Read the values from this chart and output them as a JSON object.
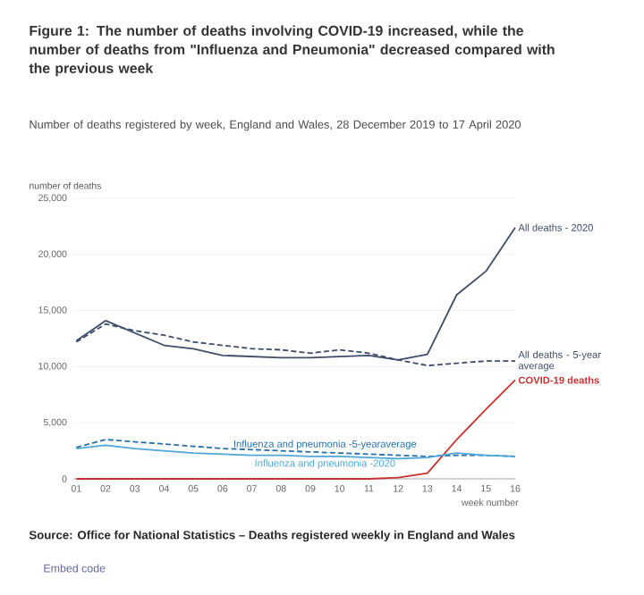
{
  "chart_data": {
    "type": "line",
    "title": "Figure 1: The number of deaths involving COVID-19 increased, while the number of deaths from \"Influenza and Pneumonia\" decreased compared with the previous week",
    "subtitle": "Number of deaths registered by week, England and Wales, 28 December 2019 to 17 April 2020",
    "ylabel": "number of deaths",
    "xlabel": "week number",
    "categories": [
      "01",
      "02",
      "03",
      "04",
      "05",
      "06",
      "07",
      "08",
      "09",
      "10",
      "11",
      "12",
      "13",
      "14",
      "15",
      "16"
    ],
    "ylim": [
      0,
      25000
    ],
    "yticks": [
      0,
      {
        "value": 5000,
        "label": "5,000"
      },
      {
        "value": 10000,
        "label": "10,000"
      },
      {
        "value": 15000,
        "label": "15,000"
      },
      {
        "value": 20000,
        "label": "20,000"
      },
      {
        "value": 25000,
        "label": "25,000"
      }
    ],
    "grid": "y",
    "legend": false,
    "series": [
      {
        "name": "All deaths - 2020",
        "color": "#3f4d68",
        "line_style": "solid",
        "values": [
          12300,
          14100,
          13000,
          11900,
          11600,
          11000,
          10900,
          10800,
          10800,
          10900,
          11000,
          10600,
          11100,
          16400,
          18500,
          22400
        ]
      },
      {
        "name": "All deaths - 5-year average",
        "color": "#3f4d68",
        "line_style": "dashed",
        "values": [
          12200,
          13800,
          13200,
          12800,
          12200,
          11900,
          11600,
          11500,
          11200,
          11500,
          11200,
          10600,
          10100,
          10300,
          10500,
          10500
        ]
      },
      {
        "name": "COVID-19 deaths",
        "color": "#c8312f",
        "line_style": "solid",
        "values": [
          0,
          0,
          0,
          0,
          0,
          0,
          0,
          0,
          0,
          0,
          0,
          100,
          500,
          3500,
          6200,
          8800
        ]
      },
      {
        "name": "Influenza and pneumonia -5-yearaverage",
        "color": "#2a6fa8",
        "line_style": "dashed",
        "values": [
          2800,
          3500,
          3300,
          3100,
          2900,
          2700,
          2600,
          2500,
          2400,
          2300,
          2200,
          2100,
          2000,
          2100,
          2100,
          2000
        ]
      },
      {
        "name": "Influenza and pneumonia -2020",
        "color": "#4fa6d8",
        "line_style": "solid",
        "values": [
          2700,
          3000,
          2700,
          2500,
          2300,
          2200,
          2100,
          2100,
          2000,
          2000,
          1900,
          1800,
          1900,
          2300,
          2100,
          2000
        ]
      }
    ],
    "annotations": [
      "Source: Office for National Statistics – Deaths registered weekly in England and Wales",
      "Embed code"
    ]
  }
}
